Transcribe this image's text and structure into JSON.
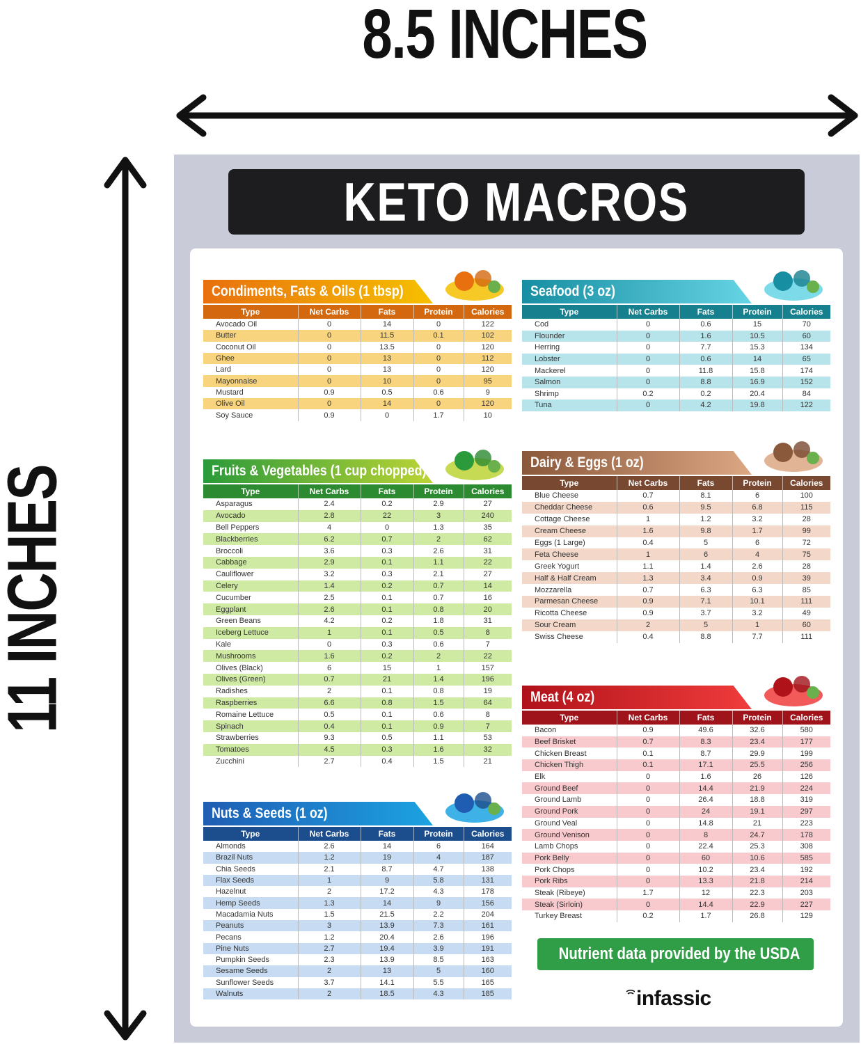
{
  "dimensions": {
    "width_label": "8.5 INCHES",
    "height_label": "11 INCHES"
  },
  "title": "KETO MACROS",
  "columns": [
    "Type",
    "Net Carbs",
    "Fats",
    "Protein",
    "Calories"
  ],
  "footer": {
    "usda": "Nutrient data provided by the USDA",
    "brand": "infassic"
  },
  "sections": [
    {
      "id": "condiments",
      "title": "Condiments, Fats & Oils (1 tbsp)",
      "colors": {
        "from": "#e8700e",
        "to": "#f6c000",
        "th": "#d3680f",
        "stripe": "#f9d47e"
      },
      "icon": "oil-bottle-icon",
      "rows": [
        [
          "Avocado Oil",
          "0",
          "14",
          "0",
          "122"
        ],
        [
          "Butter",
          "0",
          "11.5",
          "0.1",
          "102"
        ],
        [
          "Coconut Oil",
          "0",
          "13.5",
          "0",
          "120"
        ],
        [
          "Ghee",
          "0",
          "13",
          "0",
          "112"
        ],
        [
          "Lard",
          "0",
          "13",
          "0",
          "120"
        ],
        [
          "Mayonnaise",
          "0",
          "10",
          "0",
          "95"
        ],
        [
          "Mustard",
          "0.9",
          "0.5",
          "0.6",
          "9"
        ],
        [
          "Olive Oil",
          "0",
          "14",
          "0",
          "120"
        ],
        [
          "Soy Sauce",
          "0.9",
          "0",
          "1.7",
          "10"
        ]
      ]
    },
    {
      "id": "fruits",
      "title": "Fruits & Vegetables (1 cup chopped)",
      "colors": {
        "from": "#2a9a3a",
        "to": "#bcd435",
        "th": "#2c8a31",
        "stripe": "#cfeaa2"
      },
      "icon": "vegetables-basket-icon",
      "rows": [
        [
          "Asparagus",
          "2.4",
          "0.2",
          "2.9",
          "27"
        ],
        [
          "Avocado",
          "2.8",
          "22",
          "3",
          "240"
        ],
        [
          "Bell Peppers",
          "4",
          "0",
          "1.3",
          "35"
        ],
        [
          "Blackberries",
          "6.2",
          "0.7",
          "2",
          "62"
        ],
        [
          "Broccoli",
          "3.6",
          "0.3",
          "2.6",
          "31"
        ],
        [
          "Cabbage",
          "2.9",
          "0.1",
          "1.1",
          "22"
        ],
        [
          "Cauliflower",
          "3.2",
          "0.3",
          "2.1",
          "27"
        ],
        [
          "Celery",
          "1.4",
          "0.2",
          "0.7",
          "14"
        ],
        [
          "Cucumber",
          "2.5",
          "0.1",
          "0.7",
          "16"
        ],
        [
          "Eggplant",
          "2.6",
          "0.1",
          "0.8",
          "20"
        ],
        [
          "Green Beans",
          "4.2",
          "0.2",
          "1.8",
          "31"
        ],
        [
          "Iceberg Lettuce",
          "1",
          "0.1",
          "0.5",
          "8"
        ],
        [
          "Kale",
          "0",
          "0.3",
          "0.6",
          "7"
        ],
        [
          "Mushrooms",
          "1.6",
          "0.2",
          "2",
          "22"
        ],
        [
          "Olives (Black)",
          "6",
          "15",
          "1",
          "157"
        ],
        [
          "Olives (Green)",
          "0.7",
          "21",
          "1.4",
          "196"
        ],
        [
          "Radishes",
          "2",
          "0.1",
          "0.8",
          "19"
        ],
        [
          "Raspberries",
          "6.6",
          "0.8",
          "1.5",
          "64"
        ],
        [
          "Romaine Lettuce",
          "0.5",
          "0.1",
          "0.6",
          "8"
        ],
        [
          "Spinach",
          "0.4",
          "0.1",
          "0.9",
          "7"
        ],
        [
          "Strawberries",
          "9.3",
          "0.5",
          "1.1",
          "53"
        ],
        [
          "Tomatoes",
          "4.5",
          "0.3",
          "1.6",
          "32"
        ],
        [
          "Zucchini",
          "2.7",
          "0.4",
          "1.5",
          "21"
        ]
      ]
    },
    {
      "id": "nuts",
      "title": "Nuts & Seeds (1 oz)",
      "colors": {
        "from": "#1f5db3",
        "to": "#1ca3e2",
        "th": "#1c4d8c",
        "stripe": "#c7dcf2"
      },
      "icon": "nuts-icon",
      "rows": [
        [
          "Almonds",
          "2.6",
          "14",
          "6",
          "164"
        ],
        [
          "Brazil Nuts",
          "1.2",
          "19",
          "4",
          "187"
        ],
        [
          "Chia Seeds",
          "2.1",
          "8.7",
          "4.7",
          "138"
        ],
        [
          "Flax Seeds",
          "1",
          "9",
          "5.8",
          "131"
        ],
        [
          "Hazelnut",
          "2",
          "17.2",
          "4.3",
          "178"
        ],
        [
          "Hemp Seeds",
          "1.3",
          "14",
          "9",
          "156"
        ],
        [
          "Macadamia Nuts",
          "1.5",
          "21.5",
          "2.2",
          "204"
        ],
        [
          "Peanuts",
          "3",
          "13.9",
          "7.3",
          "161"
        ],
        [
          "Pecans",
          "1.2",
          "20.4",
          "2.6",
          "196"
        ],
        [
          "Pine Nuts",
          "2.7",
          "19.4",
          "3.9",
          "191"
        ],
        [
          "Pumpkin Seeds",
          "2.3",
          "13.9",
          "8.5",
          "163"
        ],
        [
          "Sesame Seeds",
          "2",
          "13",
          "5",
          "160"
        ],
        [
          "Sunflower Seeds",
          "3.7",
          "14.1",
          "5.5",
          "165"
        ],
        [
          "Walnuts",
          "2",
          "18.5",
          "4.3",
          "185"
        ]
      ]
    },
    {
      "id": "seafood",
      "title": "Seafood (3 oz)",
      "colors": {
        "from": "#178ea2",
        "to": "#66d4e4",
        "th": "#17808e",
        "stripe": "#b7e4eb"
      },
      "icon": "fish-icon",
      "rows": [
        [
          "Cod",
          "0",
          "0.6",
          "15",
          "70"
        ],
        [
          "Flounder",
          "0",
          "1.6",
          "10.5",
          "60"
        ],
        [
          "Herring",
          "0",
          "7.7",
          "15.3",
          "134"
        ],
        [
          "Lobster",
          "0",
          "0.6",
          "14",
          "65"
        ],
        [
          "Mackerel",
          "0",
          "11.8",
          "15.8",
          "174"
        ],
        [
          "Salmon",
          "0",
          "8.8",
          "16.9",
          "152"
        ],
        [
          "Shrimp",
          "0.2",
          "0.2",
          "20.4",
          "84"
        ],
        [
          "Tuna",
          "0",
          "4.2",
          "19.8",
          "122"
        ]
      ]
    },
    {
      "id": "dairy",
      "title": "Dairy & Eggs (1 oz)",
      "colors": {
        "from": "#8a583a",
        "to": "#dca783",
        "th": "#784830",
        "stripe": "#f3d7c8"
      },
      "icon": "cheese-milk-eggs-icon",
      "rows": [
        [
          "Blue Cheese",
          "0.7",
          "8.1",
          "6",
          "100"
        ],
        [
          "Cheddar Cheese",
          "0.6",
          "9.5",
          "6.8",
          "115"
        ],
        [
          "Cottage Cheese",
          "1",
          "1.2",
          "3.2",
          "28"
        ],
        [
          "Cream Cheese",
          "1.6",
          "9.8",
          "1.7",
          "99"
        ],
        [
          "Eggs (1 Large)",
          "0.4",
          "5",
          "6",
          "72"
        ],
        [
          "Feta Cheese",
          "1",
          "6",
          "4",
          "75"
        ],
        [
          "Greek Yogurt",
          "1.1",
          "1.4",
          "2.6",
          "28"
        ],
        [
          "Half & Half Cream",
          "1.3",
          "3.4",
          "0.9",
          "39"
        ],
        [
          "Mozzarella",
          "0.7",
          "6.3",
          "6.3",
          "85"
        ],
        [
          "Parmesan Cheese",
          "0.9",
          "7.1",
          "10.1",
          "111"
        ],
        [
          "Ricotta Cheese",
          "0.9",
          "3.7",
          "3.2",
          "49"
        ],
        [
          "Sour Cream",
          "2",
          "5",
          "1",
          "60"
        ],
        [
          "Swiss Cheese",
          "0.4",
          "8.8",
          "7.7",
          "111"
        ]
      ]
    },
    {
      "id": "meat",
      "title": "Meat (4 oz)",
      "colors": {
        "from": "#b0121a",
        "to": "#f03c3c",
        "th": "#9f131a",
        "stripe": "#f8cacd"
      },
      "icon": "meat-icon",
      "rows": [
        [
          "Bacon",
          "0.9",
          "49.6",
          "32.6",
          "580"
        ],
        [
          "Beef Brisket",
          "0.7",
          "8.3",
          "23.4",
          "177"
        ],
        [
          "Chicken Breast",
          "0.1",
          "8.7",
          "29.9",
          "199"
        ],
        [
          "Chicken Thigh",
          "0.1",
          "17.1",
          "25.5",
          "256"
        ],
        [
          "Elk",
          "0",
          "1.6",
          "26",
          "126"
        ],
        [
          "Ground Beef",
          "0",
          "14.4",
          "21.9",
          "224"
        ],
        [
          "Ground Lamb",
          "0",
          "26.4",
          "18.8",
          "319"
        ],
        [
          "Ground Pork",
          "0",
          "24",
          "19.1",
          "297"
        ],
        [
          "Ground Veal",
          "0",
          "14.8",
          "21",
          "223"
        ],
        [
          "Ground Venison",
          "0",
          "8",
          "24.7",
          "178"
        ],
        [
          "Lamb Chops",
          "0",
          "22.4",
          "25.3",
          "308"
        ],
        [
          "Pork Belly",
          "0",
          "60",
          "10.6",
          "585"
        ],
        [
          "Pork Chops",
          "0",
          "10.2",
          "23.4",
          "192"
        ],
        [
          "Pork Ribs",
          "0",
          "13.3",
          "21.8",
          "214"
        ],
        [
          "Steak (Ribeye)",
          "1.7",
          "12",
          "22.3",
          "203"
        ],
        [
          "Steak (Sirloin)",
          "0",
          "14.4",
          "22.9",
          "227"
        ],
        [
          "Turkey Breast",
          "0.2",
          "1.7",
          "26.8",
          "129"
        ]
      ]
    }
  ]
}
